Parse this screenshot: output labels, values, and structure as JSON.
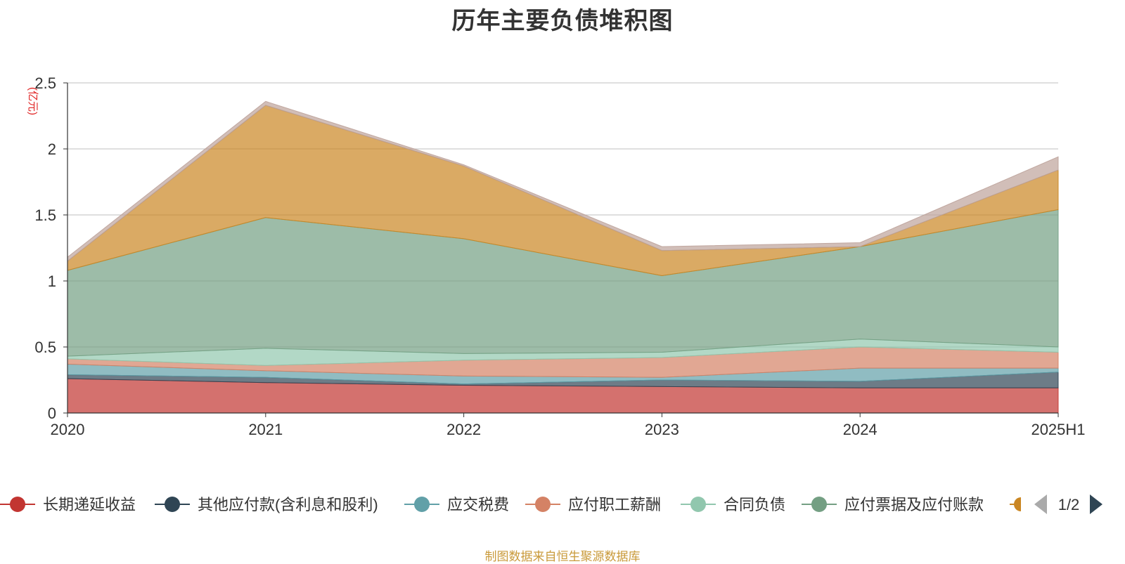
{
  "title": "历年主要负债堆积图",
  "footer": "制图数据来自恒生聚源数据库",
  "chart_data": {
    "type": "area",
    "stacked": true,
    "ylabel": "(亿元)",
    "ylim": [
      0,
      2.5
    ],
    "yticks": [
      "0",
      "0.5",
      "1",
      "1.5",
      "2",
      "2.5"
    ],
    "categories": [
      "2020",
      "2021",
      "2022",
      "2023",
      "2024",
      "2025H1"
    ],
    "grid": true,
    "legend": {
      "position": "bottom",
      "page": "1/2"
    },
    "series": [
      {
        "name": "长期递延收益",
        "color": "#c23531",
        "values": [
          0.26,
          0.23,
          0.21,
          0.2,
          0.19,
          0.19
        ]
      },
      {
        "name": "其他应付款(含利息和股利)",
        "color": "#2f4554",
        "values": [
          0.03,
          0.04,
          0.01,
          0.05,
          0.05,
          0.12
        ]
      },
      {
        "name": "应交税费",
        "color": "#61a0a8",
        "values": [
          0.08,
          0.05,
          0.06,
          0.02,
          0.1,
          0.03
        ]
      },
      {
        "name": "应付职工薪酬",
        "color": "#d48265",
        "values": [
          0.04,
          0.04,
          0.12,
          0.15,
          0.16,
          0.12
        ]
      },
      {
        "name": "合同负债",
        "color": "#91c7ae",
        "values": [
          0.02,
          0.13,
          0.05,
          0.04,
          0.06,
          0.04
        ]
      },
      {
        "name": "应付票据及应付账款",
        "color": "#749f83",
        "values": [
          0.65,
          0.99,
          0.87,
          0.58,
          0.7,
          1.04
        ]
      },
      {
        "name": "",
        "color": "#ca8622",
        "values": [
          0.07,
          0.85,
          0.55,
          0.19,
          0.0,
          0.3
        ]
      },
      {
        "name": "",
        "color": "#bda29a",
        "values": [
          0.03,
          0.03,
          0.01,
          0.03,
          0.03,
          0.1
        ]
      }
    ]
  }
}
